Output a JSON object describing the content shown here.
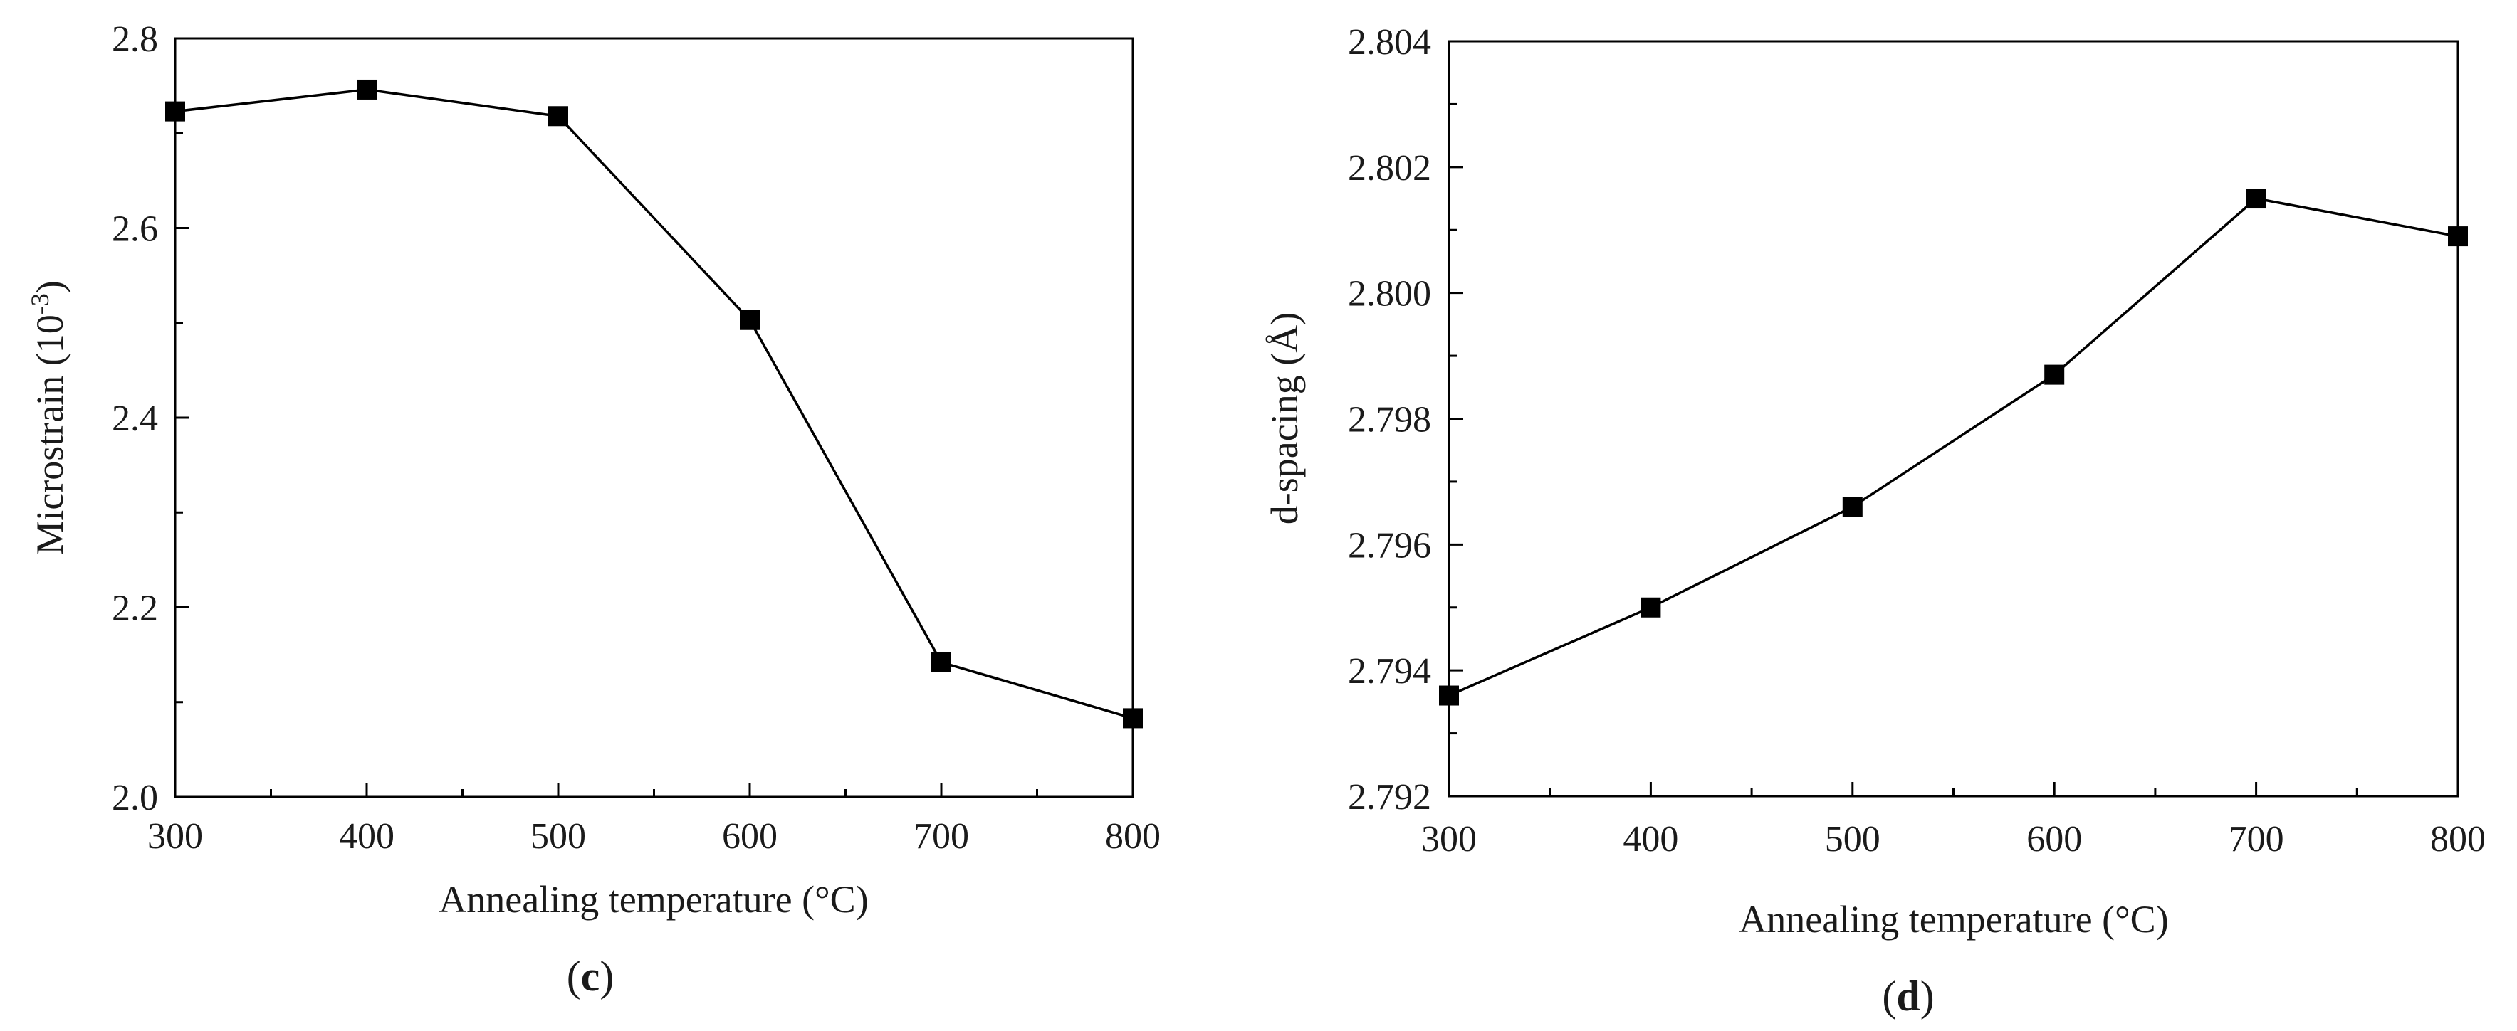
{
  "chart_data": [
    {
      "type": "line",
      "panel": "c",
      "xlabel": "Annealing temperature (°C)",
      "ylabel": "Microstrain",
      "ylabel_unit": "10",
      "ylabel_exp": "-3",
      "x": [
        300,
        400,
        500,
        600,
        700,
        800
      ],
      "y": [
        2.723,
        2.746,
        2.718,
        2.503,
        2.142,
        2.083
      ],
      "xlim": [
        300,
        800
      ],
      "ylim": [
        2.0,
        2.8
      ],
      "xticks": [
        "300",
        "400",
        "500",
        "600",
        "700",
        "800"
      ],
      "yticks": [
        "2.0",
        "2.2",
        "2.4",
        "2.6",
        "2.8"
      ],
      "marker": "square"
    },
    {
      "type": "line",
      "panel": "d",
      "xlabel": "Annealing temperature (°C)",
      "ylabel": "d-spacing (Å)",
      "x": [
        300,
        400,
        500,
        600,
        700,
        800
      ],
      "y": [
        2.7936,
        2.795,
        2.7966,
        2.7987,
        2.8015,
        2.8009
      ],
      "xlim": [
        300,
        800
      ],
      "ylim": [
        2.792,
        2.804
      ],
      "xticks": [
        "300",
        "400",
        "500",
        "600",
        "700",
        "800"
      ],
      "yticks": [
        "2.792",
        "2.794",
        "2.796",
        "2.798",
        "2.800",
        "2.802",
        "2.804"
      ],
      "marker": "square"
    }
  ],
  "colors": {
    "series": "#000000",
    "text": "#1a1a1a"
  }
}
